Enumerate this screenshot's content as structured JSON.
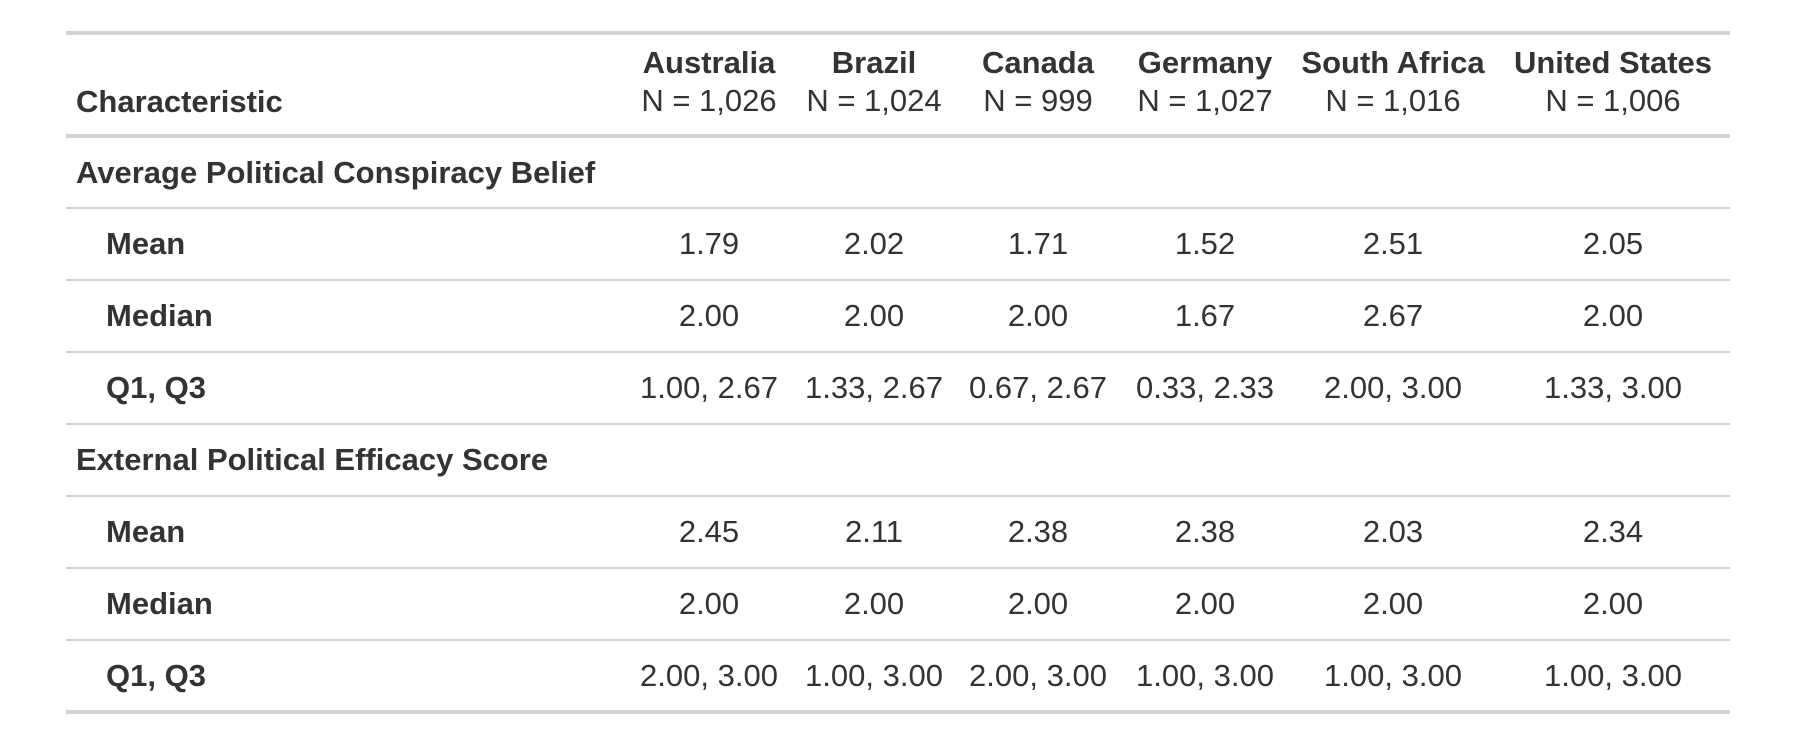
{
  "header": {
    "characteristic": "Characteristic",
    "columns": [
      {
        "name": "Australia",
        "n": "N = 1,026"
      },
      {
        "name": "Brazil",
        "n": "N = 1,024"
      },
      {
        "name": "Canada",
        "n": "N = 999"
      },
      {
        "name": "Germany",
        "n": "N = 1,027"
      },
      {
        "name": "South Africa",
        "n": "N = 1,016"
      },
      {
        "name": "United States",
        "n": "N = 1,006"
      }
    ]
  },
  "groups": [
    {
      "label": "Average Political Conspiracy Belief",
      "rows": [
        {
          "stat": "Mean",
          "values": [
            "1.79",
            "2.02",
            "1.71",
            "1.52",
            "2.51",
            "2.05"
          ]
        },
        {
          "stat": "Median",
          "values": [
            "2.00",
            "2.00",
            "2.00",
            "1.67",
            "2.67",
            "2.00"
          ]
        },
        {
          "stat": "Q1, Q3",
          "values": [
            "1.00, 2.67",
            "1.33, 2.67",
            "0.67, 2.67",
            "0.33, 2.33",
            "2.00, 3.00",
            "1.33, 3.00"
          ]
        }
      ]
    },
    {
      "label": "External Political Efficacy Score",
      "rows": [
        {
          "stat": "Mean",
          "values": [
            "2.45",
            "2.11",
            "2.38",
            "2.38",
            "2.03",
            "2.34"
          ]
        },
        {
          "stat": "Median",
          "values": [
            "2.00",
            "2.00",
            "2.00",
            "2.00",
            "2.00",
            "2.00"
          ]
        },
        {
          "stat": "Q1, Q3",
          "values": [
            "2.00, 3.00",
            "1.00, 3.00",
            "2.00, 3.00",
            "1.00, 3.00",
            "1.00, 3.00",
            "1.00, 3.00"
          ]
        }
      ]
    }
  ]
}
